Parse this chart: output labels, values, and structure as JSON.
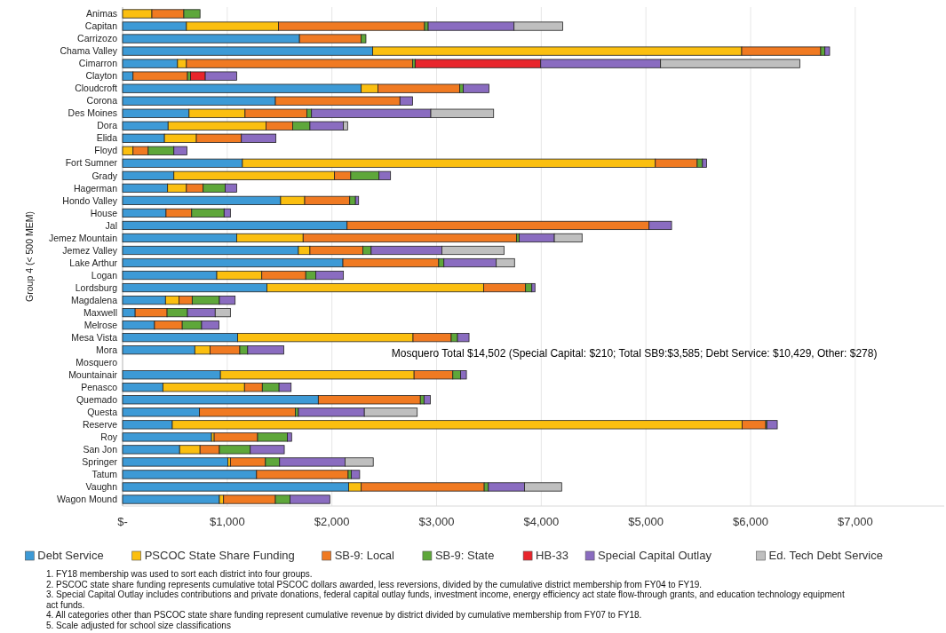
{
  "chart_data": {
    "type": "bar",
    "orientation": "horizontal",
    "stacked": true,
    "ylabel": "Group 4 (< 500 MEM)",
    "categories": [
      "Animas",
      "Capitan",
      "Carrizozo",
      "Chama Valley",
      "Cimarron",
      "Clayton",
      "Cloudcroft",
      "Corona",
      "Des Moines",
      "Dora",
      "Elida",
      "Floyd",
      "Fort Sumner",
      "Grady",
      "Hagerman",
      "Hondo Valley",
      "House",
      "Jal",
      "Jemez Mountain",
      "Jemez Valley",
      "Lake Arthur",
      "Logan",
      "Lordsburg",
      "Magdalena",
      "Maxwell",
      "Melrose",
      "Mesa Vista",
      "Mora",
      "Mosquero",
      "Mountainair",
      "Penasco",
      "Quemado",
      "Questa",
      "Reserve",
      "Roy",
      "San Jon",
      "Springer",
      "Tatum",
      "Vaughn",
      "Wagon Mound"
    ],
    "series": [
      {
        "name": "Debt Service",
        "color": "#3d9ad6",
        "values": [
          0,
          610,
          1690,
          2390,
          525,
          100,
          2280,
          1460,
          635,
          435,
          400,
          0,
          1145,
          490,
          430,
          1510,
          415,
          2145,
          1090,
          1680,
          2105,
          900,
          1380,
          410,
          120,
          305,
          1100,
          690,
          null,
          935,
          385,
          1870,
          735,
          475,
          850,
          545,
          1005,
          1280,
          2160,
          925
        ]
      },
      {
        "name": "PSCOC State Share Funding",
        "color": "#fbbf10",
        "values": [
          280,
          880,
          0,
          3525,
          85,
          0,
          160,
          0,
          535,
          935,
          305,
          100,
          3945,
          1535,
          180,
          230,
          0,
          0,
          635,
          110,
          0,
          430,
          2070,
          130,
          0,
          0,
          1675,
          145,
          null,
          1850,
          780,
          0,
          0,
          5445,
          25,
          195,
          25,
          0,
          120,
          40
        ]
      },
      {
        "name": "SB-9: Local",
        "color": "#f07a22",
        "values": [
          305,
          1395,
          590,
          755,
          2160,
          520,
          780,
          1190,
          590,
          255,
          430,
          145,
          400,
          155,
          160,
          430,
          245,
          2885,
          2040,
          505,
          915,
          420,
          400,
          125,
          305,
          265,
          365,
          285,
          null,
          370,
          170,
          975,
          915,
          225,
          415,
          185,
          335,
          875,
          1175,
          495
        ]
      },
      {
        "name": "SB-9: State",
        "color": "#5ea73a",
        "values": [
          155,
          35,
          45,
          40,
          25,
          30,
          35,
          0,
          45,
          165,
          0,
          245,
          50,
          270,
          210,
          55,
          310,
          0,
          25,
          80,
          50,
          95,
          60,
          260,
          195,
          185,
          60,
          75,
          null,
          75,
          160,
          35,
          30,
          10,
          285,
          295,
          135,
          30,
          40,
          140
        ]
      },
      {
        "name": "HB-33",
        "color": "#e8252c",
        "values": [
          0,
          0,
          0,
          0,
          1200,
          140,
          0,
          0,
          0,
          0,
          0,
          0,
          0,
          0,
          0,
          0,
          0,
          0,
          0,
          0,
          0,
          0,
          0,
          0,
          0,
          0,
          0,
          0,
          null,
          0,
          0,
          0,
          0,
          0,
          0,
          0,
          0,
          0,
          0,
          0
        ]
      },
      {
        "name": "Special Capital Outlay",
        "color": "#8a6cc0",
        "values": [
          0,
          820,
          0,
          45,
          1145,
          300,
          245,
          120,
          1140,
          320,
          330,
          125,
          40,
          110,
          110,
          30,
          60,
          215,
          335,
          675,
          500,
          265,
          30,
          150,
          265,
          165,
          110,
          345,
          null,
          55,
          115,
          60,
          630,
          100,
          40,
          325,
          625,
          80,
          345,
          380
        ]
      },
      {
        "name": "Ed. Tech Debt Service",
        "color": "#bfbfbf",
        "values": [
          0,
          465,
          0,
          0,
          1330,
          0,
          0,
          0,
          600,
          40,
          0,
          0,
          0,
          0,
          0,
          0,
          0,
          0,
          265,
          595,
          175,
          0,
          0,
          0,
          145,
          0,
          0,
          0,
          null,
          0,
          0,
          0,
          505,
          0,
          0,
          0,
          270,
          0,
          355,
          0
        ]
      }
    ],
    "xlim": [
      0,
      7850
    ],
    "xticks": [
      {
        "value": 0,
        "label": "$-"
      },
      {
        "value": 1000,
        "label": "$1,000"
      },
      {
        "value": 2000,
        "label": "$2,000"
      },
      {
        "value": 3000,
        "label": "$3,000"
      },
      {
        "value": 4000,
        "label": "$4,000"
      },
      {
        "value": 5000,
        "label": "$5,000"
      },
      {
        "value": 6000,
        "label": "$6,000"
      },
      {
        "value": 7000,
        "label": "$7,000"
      }
    ],
    "grid": "x",
    "legend": "bottom",
    "annotations": [
      {
        "text": "Mosquero Total $14,502 (Special Capital: $210; Total SB9:$3,585; Debt Service: $10,429, Other: $278)",
        "x": 2570,
        "y": "Mosquero"
      },
      "1. FY18 membership was used to sort each district into four groups.",
      "2. PSCOC state share funding represents cumulative total PSCOC dollars awarded, less reversions, divided by the cumulative district membership from FY04 to FY19.",
      "3. Special Capital Outlay includes contributions and private donations, federal capital outlay funds, investment income, energy efficiency act state flow-through grants, and education technology equipment act funds.",
      "4. All categories other than PSCOC state share funding represent cumulative revenue by district divided by cumulative membership from FY07 to FY18.",
      "5. Scale adjusted for school size classifications"
    ]
  }
}
